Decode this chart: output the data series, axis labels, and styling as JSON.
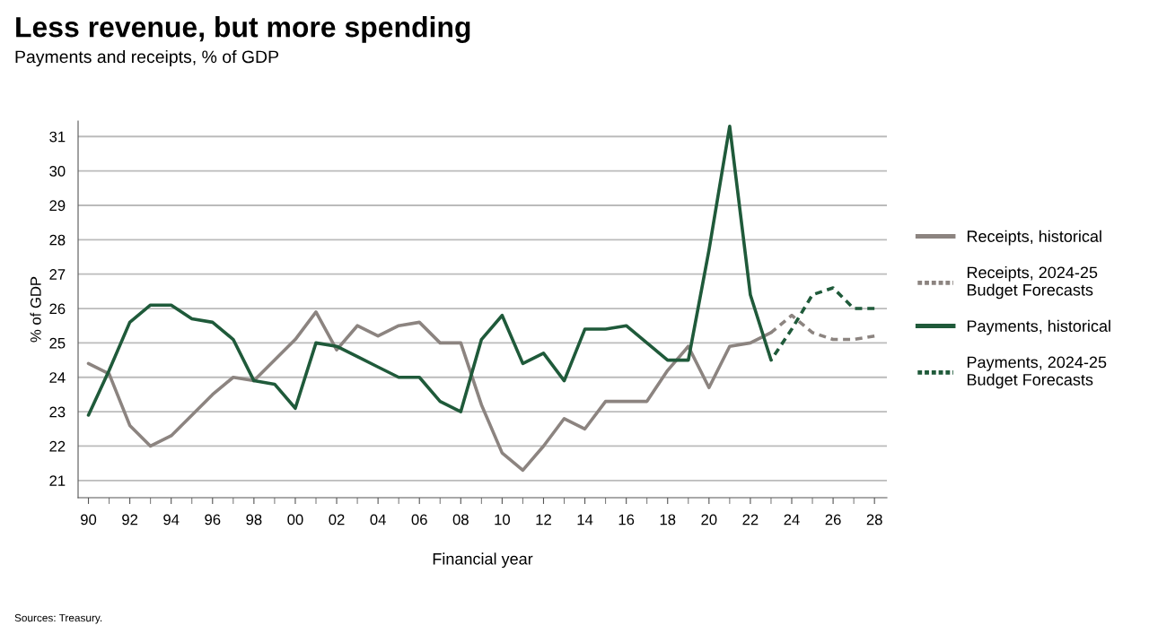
{
  "chart_data": {
    "type": "line",
    "title": "Less revenue, but more spending",
    "subtitle": "Payments and receipts, % of GDP",
    "xlabel": "Financial year",
    "ylabel": "% of GDP",
    "annotations": [
      "Sources: Treasury."
    ],
    "series": [
      {
        "name": "Receipts, historical",
        "color": "#8c8480",
        "line_style": "solid",
        "x": [
          1990,
          1991,
          1992,
          1993,
          1994,
          1995,
          1996,
          1997,
          1998,
          1999,
          2000,
          2001,
          2002,
          2003,
          2004,
          2005,
          2006,
          2007,
          2008,
          2009,
          2010,
          2011,
          2012,
          2013,
          2014,
          2015,
          2016,
          2017,
          2018,
          2019,
          2020,
          2021,
          2022,
          2023
        ],
        "values": [
          24.4,
          24.1,
          22.6,
          22.0,
          22.3,
          22.9,
          23.5,
          24.0,
          23.9,
          24.5,
          25.1,
          25.9,
          24.8,
          25.5,
          25.2,
          25.5,
          25.6,
          25.0,
          25.0,
          23.2,
          21.8,
          21.3,
          22.0,
          22.8,
          22.5,
          23.3,
          23.3,
          23.3,
          24.2,
          24.9,
          23.7,
          24.9,
          25.0,
          25.3
        ]
      },
      {
        "name": "Receipts, 2024-25\nBudget Forecasts",
        "color": "#8c8480",
        "line_style": "dashed",
        "x": [
          2023,
          2024,
          2025,
          2026,
          2027,
          2028
        ],
        "values": [
          25.3,
          25.8,
          25.3,
          25.1,
          25.1,
          25.2
        ]
      },
      {
        "name": "Payments, historical",
        "color": "#1f5a3a",
        "line_style": "solid",
        "x": [
          1990,
          1991,
          1992,
          1993,
          1994,
          1995,
          1996,
          1997,
          1998,
          1999,
          2000,
          2001,
          2002,
          2003,
          2004,
          2005,
          2006,
          2007,
          2008,
          2009,
          2010,
          2011,
          2012,
          2013,
          2014,
          2015,
          2016,
          2017,
          2018,
          2019,
          2020,
          2021,
          2022,
          2023
        ],
        "values": [
          22.9,
          24.2,
          25.6,
          26.1,
          26.1,
          25.7,
          25.6,
          25.1,
          23.9,
          23.8,
          23.1,
          25.0,
          24.9,
          24.6,
          24.3,
          24.0,
          24.0,
          23.3,
          23.0,
          25.1,
          25.8,
          24.4,
          24.7,
          23.9,
          25.4,
          25.4,
          25.5,
          25.0,
          24.5,
          24.5,
          27.7,
          31.3,
          26.4,
          24.5
        ]
      },
      {
        "name": "Payments, 2024-25\nBudget Forecasts",
        "color": "#1f5a3a",
        "line_style": "dashed",
        "x": [
          2023,
          2024,
          2025,
          2026,
          2027,
          2028
        ],
        "values": [
          24.5,
          25.4,
          26.4,
          26.6,
          26.0,
          26.0
        ]
      }
    ],
    "xlim": [
      1989.5,
      2028.6
    ],
    "ylim": [
      20.5,
      31.45
    ],
    "xticks": [
      {
        "value": 1990,
        "label": "90"
      },
      {
        "value": 1992,
        "label": "92"
      },
      {
        "value": 1994,
        "label": "94"
      },
      {
        "value": 1996,
        "label": "96"
      },
      {
        "value": 1998,
        "label": "98"
      },
      {
        "value": 2000,
        "label": "00"
      },
      {
        "value": 2002,
        "label": "02"
      },
      {
        "value": 2004,
        "label": "04"
      },
      {
        "value": 2006,
        "label": "06"
      },
      {
        "value": 2008,
        "label": "08"
      },
      {
        "value": 2010,
        "label": "10"
      },
      {
        "value": 2012,
        "label": "12"
      },
      {
        "value": 2014,
        "label": "14"
      },
      {
        "value": 2016,
        "label": "16"
      },
      {
        "value": 2018,
        "label": "18"
      },
      {
        "value": 2020,
        "label": "20"
      },
      {
        "value": 2022,
        "label": "22"
      },
      {
        "value": 2024,
        "label": "24"
      },
      {
        "value": 2026,
        "label": "26"
      },
      {
        "value": 2028,
        "label": "28"
      }
    ],
    "yticks": [
      21,
      22,
      23,
      24,
      25,
      26,
      27,
      28,
      29,
      30,
      31
    ],
    "grid": "y",
    "legend": "right",
    "marker": "none"
  }
}
